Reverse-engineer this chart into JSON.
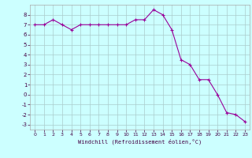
{
  "x": [
    0,
    1,
    2,
    3,
    4,
    5,
    6,
    7,
    8,
    9,
    10,
    11,
    12,
    13,
    14,
    15,
    16,
    17,
    18,
    19,
    20,
    21,
    22,
    23
  ],
  "y": [
    7.0,
    7.0,
    7.5,
    7.0,
    6.5,
    7.0,
    7.0,
    7.0,
    7.0,
    7.0,
    7.0,
    7.5,
    7.5,
    8.5,
    8.0,
    6.5,
    3.5,
    3.0,
    1.5,
    1.5,
    0.0,
    -1.8,
    -2.0,
    -2.7
  ],
  "line_color": "#990099",
  "marker": "+",
  "marker_size": 3,
  "bg_color": "#ccffff",
  "grid_color": "#aacccc",
  "xlabel": "Windchill (Refroidissement éolien,°C)",
  "xlim": [
    -0.5,
    23.5
  ],
  "ylim": [
    -3.5,
    9.0
  ],
  "yticks": [
    -3,
    -2,
    -1,
    0,
    1,
    2,
    3,
    4,
    5,
    6,
    7,
    8
  ],
  "xticks": [
    0,
    1,
    2,
    3,
    4,
    5,
    6,
    7,
    8,
    9,
    10,
    11,
    12,
    13,
    14,
    15,
    16,
    17,
    18,
    19,
    20,
    21,
    22,
    23
  ]
}
